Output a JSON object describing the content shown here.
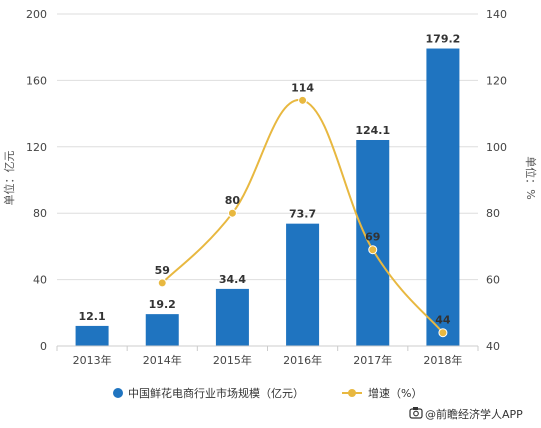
{
  "chart_data": {
    "type": "bar",
    "categories": [
      "2013年",
      "2014年",
      "2015年",
      "2016年",
      "2017年",
      "2018年"
    ],
    "series": [
      {
        "name": "中国鲜花电商行业市场规模（亿元）",
        "type": "bar",
        "axis": "left",
        "color": "#1f74c0",
        "values": [
          12.1,
          19.2,
          34.4,
          73.7,
          124.1,
          179.2
        ]
      },
      {
        "name": "增速（%）",
        "type": "line",
        "axis": "right",
        "color": "#e8b840",
        "values": [
          null,
          59,
          80,
          114,
          69,
          44
        ]
      }
    ],
    "ylabel": "单位：亿元",
    "y2label": "单位：%",
    "ylim": [
      0,
      200
    ],
    "y2lim": [
      40,
      140
    ],
    "yticks": [
      "0",
      "40",
      "80",
      "120",
      "160",
      "200"
    ],
    "y2ticks": [
      "40",
      "60",
      "80",
      "100",
      "120",
      "140"
    ],
    "grid": true,
    "legend_position": "bottom"
  },
  "source": "@前瞻经济学人APP",
  "source_icon": "camera-icon"
}
